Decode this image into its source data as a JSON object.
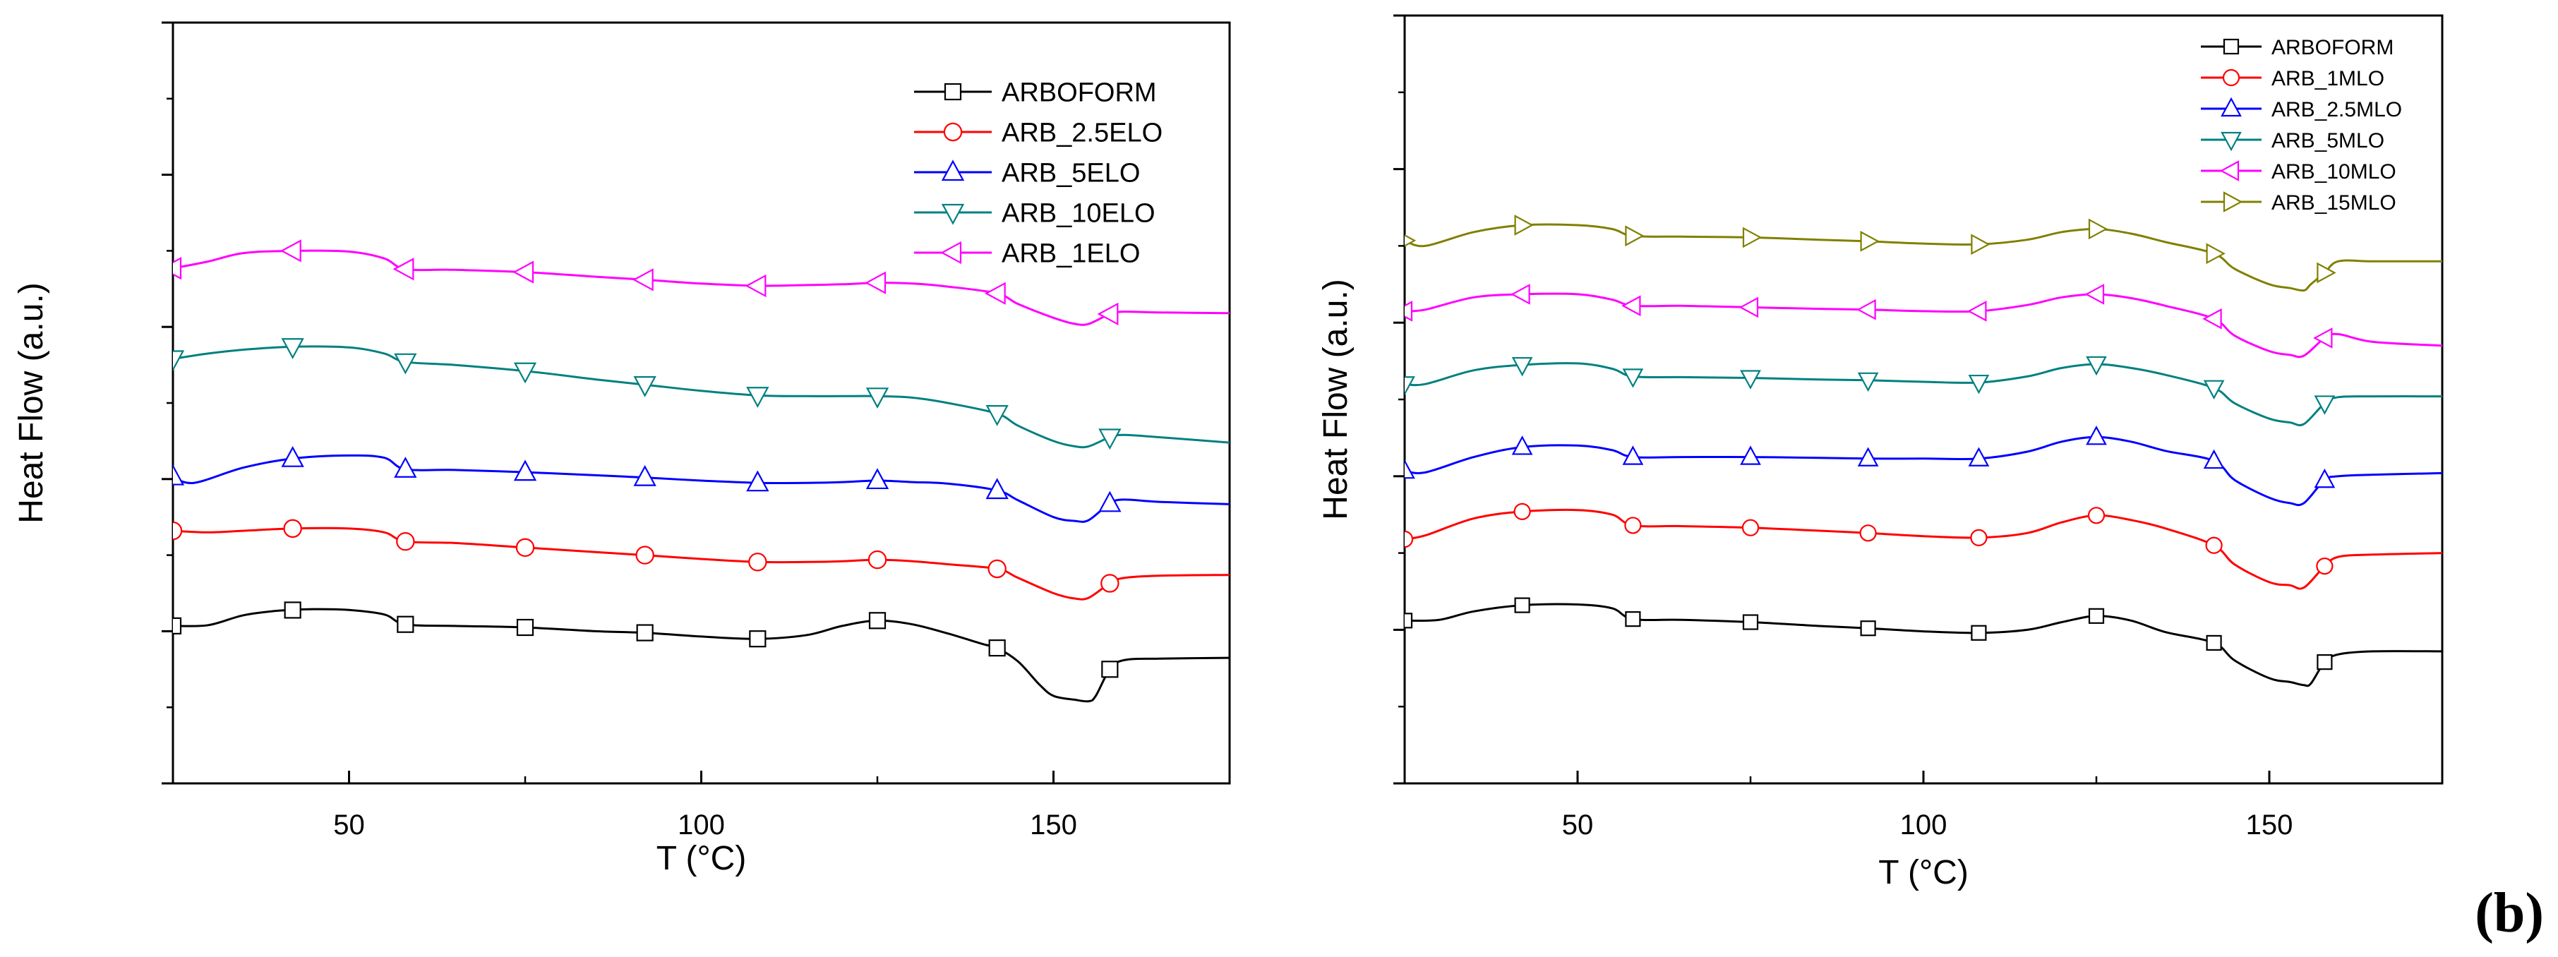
{
  "panel_label": "(b)",
  "chart_data": [
    {
      "type": "line",
      "title": "",
      "xlabel": "T (°C)",
      "ylabel": "Heat Flow (a.u.)",
      "xlim": [
        25,
        175
      ],
      "ylim": [
        0,
        1
      ],
      "xticks": [
        50,
        100,
        150
      ],
      "yticks_shown_without_labels": true,
      "grid": false,
      "legend_position": "top-right",
      "series": [
        {
          "name": "ARBOFORM",
          "color": "#000000",
          "marker": "square",
          "x": [
            25,
            30,
            35,
            40,
            45,
            50,
            55,
            58,
            65,
            75,
            85,
            92,
            100,
            108,
            115,
            120,
            125,
            130,
            135,
            140,
            142,
            145,
            148,
            150,
            153,
            155,
            156,
            158,
            160,
            165,
            175
          ],
          "y": [
            0.207,
            0.208,
            0.221,
            0.227,
            0.229,
            0.228,
            0.222,
            0.209,
            0.207,
            0.205,
            0.2,
            0.198,
            0.193,
            0.19,
            0.195,
            0.207,
            0.214,
            0.209,
            0.197,
            0.183,
            0.178,
            0.16,
            0.13,
            0.115,
            0.11,
            0.108,
            0.115,
            0.15,
            0.162,
            0.164,
            0.165
          ]
        },
        {
          "name": "ARB_2.5ELO",
          "color": "#ff0000",
          "marker": "circle",
          "x": [
            25,
            30,
            35,
            42,
            50,
            55,
            58,
            65,
            75,
            85,
            92,
            100,
            108,
            115,
            120,
            125,
            130,
            135,
            142,
            145,
            150,
            153,
            155,
            158,
            160,
            165,
            175
          ],
          "y": [
            0.332,
            0.33,
            0.332,
            0.335,
            0.335,
            0.33,
            0.318,
            0.316,
            0.31,
            0.304,
            0.3,
            0.295,
            0.291,
            0.291,
            0.292,
            0.294,
            0.292,
            0.288,
            0.282,
            0.27,
            0.25,
            0.243,
            0.244,
            0.263,
            0.27,
            0.273,
            0.274
          ]
        },
        {
          "name": "ARB_5ELO",
          "color": "#0000ff",
          "marker": "triangle-up",
          "x": [
            25,
            28,
            35,
            42,
            50,
            55,
            58,
            65,
            75,
            85,
            92,
            100,
            108,
            115,
            120,
            125,
            130,
            135,
            142,
            145,
            150,
            153,
            155,
            158,
            160,
            165,
            175
          ],
          "y": [
            0.403,
            0.395,
            0.415,
            0.427,
            0.431,
            0.428,
            0.413,
            0.412,
            0.409,
            0.405,
            0.402,
            0.398,
            0.395,
            0.395,
            0.396,
            0.398,
            0.396,
            0.394,
            0.385,
            0.372,
            0.35,
            0.345,
            0.346,
            0.368,
            0.373,
            0.37,
            0.367
          ]
        },
        {
          "name": "ARB_10ELO",
          "color": "#008080",
          "marker": "triangle-down",
          "x": [
            25,
            30,
            35,
            42,
            50,
            55,
            58,
            65,
            75,
            85,
            92,
            100,
            108,
            115,
            120,
            125,
            130,
            135,
            142,
            145,
            150,
            153,
            155,
            158,
            160,
            165,
            175
          ],
          "y": [
            0.558,
            0.565,
            0.57,
            0.574,
            0.573,
            0.565,
            0.554,
            0.55,
            0.542,
            0.531,
            0.524,
            0.516,
            0.51,
            0.509,
            0.509,
            0.509,
            0.507,
            0.5,
            0.486,
            0.47,
            0.45,
            0.443,
            0.443,
            0.455,
            0.458,
            0.455,
            0.448
          ]
        },
        {
          "name": "ARB_1ELO",
          "color": "#ff00ff",
          "marker": "triangle-left",
          "x": [
            25,
            30,
            35,
            42,
            50,
            55,
            58,
            65,
            75,
            85,
            92,
            100,
            108,
            115,
            120,
            125,
            130,
            135,
            142,
            145,
            150,
            153,
            155,
            158,
            160,
            165,
            175
          ],
          "y": [
            0.677,
            0.686,
            0.697,
            0.7,
            0.699,
            0.69,
            0.676,
            0.675,
            0.672,
            0.666,
            0.662,
            0.657,
            0.654,
            0.655,
            0.656,
            0.658,
            0.657,
            0.653,
            0.644,
            0.63,
            0.612,
            0.604,
            0.604,
            0.617,
            0.62,
            0.619,
            0.618
          ]
        }
      ]
    },
    {
      "type": "line",
      "title": "",
      "xlabel": "T (°C)",
      "ylabel": "Heat Flow (a.u.)",
      "xlim": [
        25,
        175
      ],
      "ylim": [
        0,
        1
      ],
      "xticks": [
        50,
        100,
        150
      ],
      "yticks_shown_without_labels": true,
      "grid": false,
      "legend_position": "top-right",
      "series": [
        {
          "name": "ARBOFORM",
          "color": "#000000",
          "marker": "square",
          "x": [
            25,
            30,
            35,
            42,
            50,
            55,
            58,
            65,
            75,
            85,
            92,
            100,
            108,
            115,
            120,
            125,
            130,
            135,
            142,
            145,
            150,
            153,
            155,
            156,
            158,
            160,
            165,
            175
          ],
          "y": [
            0.212,
            0.213,
            0.224,
            0.232,
            0.233,
            0.228,
            0.214,
            0.213,
            0.21,
            0.205,
            0.202,
            0.198,
            0.196,
            0.2,
            0.21,
            0.218,
            0.212,
            0.197,
            0.183,
            0.16,
            0.137,
            0.132,
            0.128,
            0.13,
            0.158,
            0.168,
            0.172,
            0.172
          ]
        },
        {
          "name": "ARB_1MLO",
          "color": "#ff0000",
          "marker": "circle",
          "x": [
            25,
            28,
            35,
            42,
            50,
            55,
            58,
            65,
            75,
            85,
            92,
            100,
            108,
            115,
            120,
            125,
            130,
            135,
            142,
            145,
            150,
            153,
            155,
            158,
            160,
            165,
            175
          ],
          "y": [
            0.318,
            0.323,
            0.345,
            0.354,
            0.356,
            0.35,
            0.336,
            0.335,
            0.333,
            0.329,
            0.326,
            0.322,
            0.32,
            0.326,
            0.34,
            0.349,
            0.343,
            0.332,
            0.31,
            0.285,
            0.262,
            0.258,
            0.255,
            0.283,
            0.295,
            0.298,
            0.3
          ]
        },
        {
          "name": "ARB_2.5MLO",
          "color": "#0000ff",
          "marker": "triangle-up",
          "x": [
            25,
            28,
            35,
            42,
            50,
            55,
            58,
            65,
            75,
            85,
            92,
            100,
            108,
            115,
            120,
            125,
            130,
            135,
            142,
            145,
            150,
            153,
            155,
            158,
            160,
            165,
            175
          ],
          "y": [
            0.407,
            0.405,
            0.425,
            0.438,
            0.44,
            0.434,
            0.425,
            0.425,
            0.425,
            0.424,
            0.423,
            0.423,
            0.423,
            0.432,
            0.445,
            0.451,
            0.445,
            0.433,
            0.42,
            0.395,
            0.372,
            0.365,
            0.365,
            0.395,
            0.4,
            0.402,
            0.404
          ]
        },
        {
          "name": "ARB_5MLO",
          "color": "#008080",
          "marker": "triangle-down",
          "x": [
            25,
            28,
            35,
            42,
            50,
            55,
            58,
            65,
            75,
            85,
            92,
            100,
            108,
            115,
            120,
            125,
            130,
            135,
            142,
            145,
            150,
            153,
            155,
            158,
            160,
            165,
            175
          ],
          "y": [
            0.52,
            0.52,
            0.538,
            0.545,
            0.547,
            0.54,
            0.53,
            0.529,
            0.528,
            0.526,
            0.525,
            0.523,
            0.522,
            0.53,
            0.541,
            0.546,
            0.541,
            0.532,
            0.515,
            0.495,
            0.475,
            0.47,
            0.468,
            0.495,
            0.503,
            0.504,
            0.504
          ]
        },
        {
          "name": "ARB_10MLO",
          "color": "#ff00ff",
          "marker": "triangle-left",
          "x": [
            25,
            28,
            35,
            42,
            50,
            55,
            58,
            65,
            75,
            85,
            92,
            100,
            108,
            115,
            120,
            125,
            130,
            135,
            142,
            145,
            150,
            153,
            155,
            158,
            160,
            165,
            175
          ],
          "y": [
            0.615,
            0.617,
            0.633,
            0.637,
            0.637,
            0.63,
            0.622,
            0.622,
            0.62,
            0.618,
            0.617,
            0.615,
            0.615,
            0.623,
            0.633,
            0.637,
            0.632,
            0.622,
            0.605,
            0.583,
            0.563,
            0.558,
            0.557,
            0.58,
            0.585,
            0.575,
            0.57
          ]
        },
        {
          "name": "ARB_15MLO",
          "color": "#808000",
          "marker": "triangle-right",
          "x": [
            25,
            28,
            35,
            42,
            50,
            55,
            58,
            65,
            75,
            85,
            92,
            100,
            108,
            115,
            120,
            125,
            130,
            135,
            142,
            145,
            150,
            153,
            155,
            156,
            158,
            160,
            165,
            175
          ],
          "y": [
            0.707,
            0.7,
            0.718,
            0.727,
            0.727,
            0.722,
            0.713,
            0.712,
            0.711,
            0.708,
            0.706,
            0.703,
            0.702,
            0.708,
            0.718,
            0.722,
            0.716,
            0.705,
            0.69,
            0.67,
            0.65,
            0.645,
            0.642,
            0.65,
            0.665,
            0.68,
            0.68,
            0.68
          ]
        }
      ]
    }
  ]
}
